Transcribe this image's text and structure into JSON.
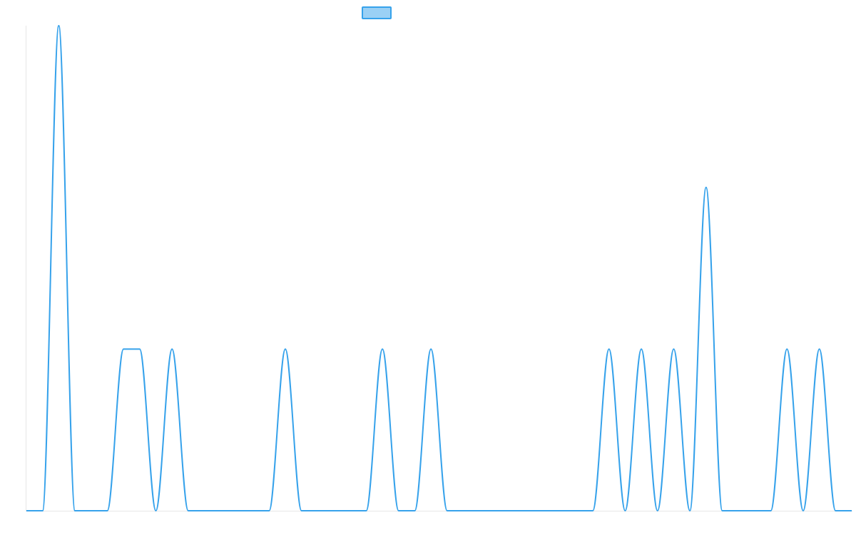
{
  "chart_data": {
    "type": "line",
    "title": "",
    "xlabel": "",
    "ylabel": "",
    "xlim": [
      0,
      51
    ],
    "ylim": [
      0,
      3
    ],
    "grid": false,
    "legend": {
      "position": "top-center",
      "entries": [
        {
          "label": "",
          "color": "#36a2eb"
        }
      ]
    },
    "series": [
      {
        "color": "#36a2eb",
        "fill": "#9ad0f5",
        "x": [
          0,
          1,
          2,
          3,
          4,
          5,
          6,
          7,
          8,
          9,
          10,
          11,
          12,
          13,
          14,
          15,
          16,
          17,
          18,
          19,
          20,
          21,
          22,
          23,
          24,
          25,
          26,
          27,
          28,
          29,
          30,
          31,
          32,
          33,
          34,
          35,
          36,
          37,
          38,
          39,
          40,
          41,
          42,
          43,
          44,
          45,
          46,
          47,
          48,
          49,
          50,
          51
        ],
        "values": [
          0,
          0,
          3,
          0,
          0,
          0,
          1,
          1,
          0,
          1,
          0,
          0,
          0,
          0,
          0,
          0,
          1,
          0,
          0,
          0,
          0,
          0,
          1,
          0,
          0,
          1,
          0,
          0,
          0,
          0,
          0,
          0,
          0,
          0,
          0,
          0,
          1,
          0,
          1,
          0,
          1,
          0,
          2,
          0,
          0,
          0,
          0,
          1,
          0,
          1,
          0,
          0
        ]
      }
    ]
  }
}
